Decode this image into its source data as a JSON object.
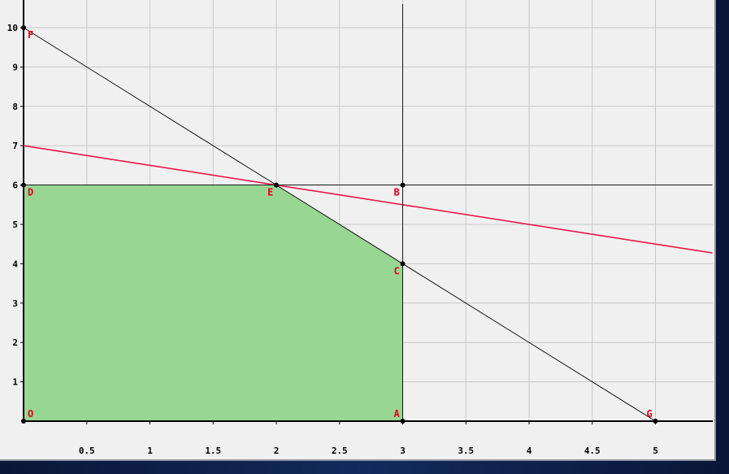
{
  "chart_data": {
    "type": "line",
    "title": "",
    "xlabel": "",
    "ylabel": "",
    "xlim": [
      0,
      5.45
    ],
    "ylim": [
      0,
      10.6
    ],
    "grid": true,
    "x_ticks": [
      {
        "value": 0.5,
        "label": "0.5"
      },
      {
        "value": 1,
        "label": "1"
      },
      {
        "value": 1.5,
        "label": "1.5"
      },
      {
        "value": 2,
        "label": "2"
      },
      {
        "value": 2.5,
        "label": "2.5"
      },
      {
        "value": 3,
        "label": "3"
      },
      {
        "value": 3.5,
        "label": "3.5"
      },
      {
        "value": 4,
        "label": "4"
      },
      {
        "value": 4.5,
        "label": "4.5"
      },
      {
        "value": 5,
        "label": "5"
      }
    ],
    "y_ticks": [
      {
        "value": 1,
        "label": "1"
      },
      {
        "value": 2,
        "label": "2"
      },
      {
        "value": 3,
        "label": "3"
      },
      {
        "value": 4,
        "label": "4"
      },
      {
        "value": 5,
        "label": "5"
      },
      {
        "value": 6,
        "label": "6"
      },
      {
        "value": 7,
        "label": "7"
      },
      {
        "value": 8,
        "label": "8"
      },
      {
        "value": 9,
        "label": "9"
      },
      {
        "value": 10,
        "label": "10"
      }
    ],
    "feasible_region": {
      "color": "#98d694",
      "vertices": [
        [
          0,
          0
        ],
        [
          0,
          6
        ],
        [
          2,
          6
        ],
        [
          3,
          4
        ],
        [
          3,
          0
        ]
      ]
    },
    "lines": [
      {
        "points": [
          [
            0,
            10
          ],
          [
            5,
            0
          ]
        ],
        "color": "#000000"
      },
      {
        "points": [
          [
            0,
            7
          ],
          [
            5.45,
            4.275
          ]
        ],
        "color": "#e8174a"
      },
      {
        "points": [
          [
            0,
            6
          ],
          [
            5.45,
            6
          ]
        ],
        "color": "#000000"
      },
      {
        "points": [
          [
            3,
            0
          ],
          [
            3,
            10.6
          ]
        ],
        "color": "#000000"
      }
    ],
    "points": [
      {
        "label": "O",
        "x": 0,
        "y": 0
      },
      {
        "label": "A",
        "x": 3,
        "y": 0
      },
      {
        "label": "B",
        "x": 3,
        "y": 6
      },
      {
        "label": "C",
        "x": 3,
        "y": 4
      },
      {
        "label": "D",
        "x": 0,
        "y": 6
      },
      {
        "label": "E",
        "x": 2,
        "y": 6
      },
      {
        "label": "F",
        "x": 0,
        "y": 10
      },
      {
        "label": "G",
        "x": 5,
        "y": 0
      }
    ],
    "point_label_color": "#e8001c"
  }
}
